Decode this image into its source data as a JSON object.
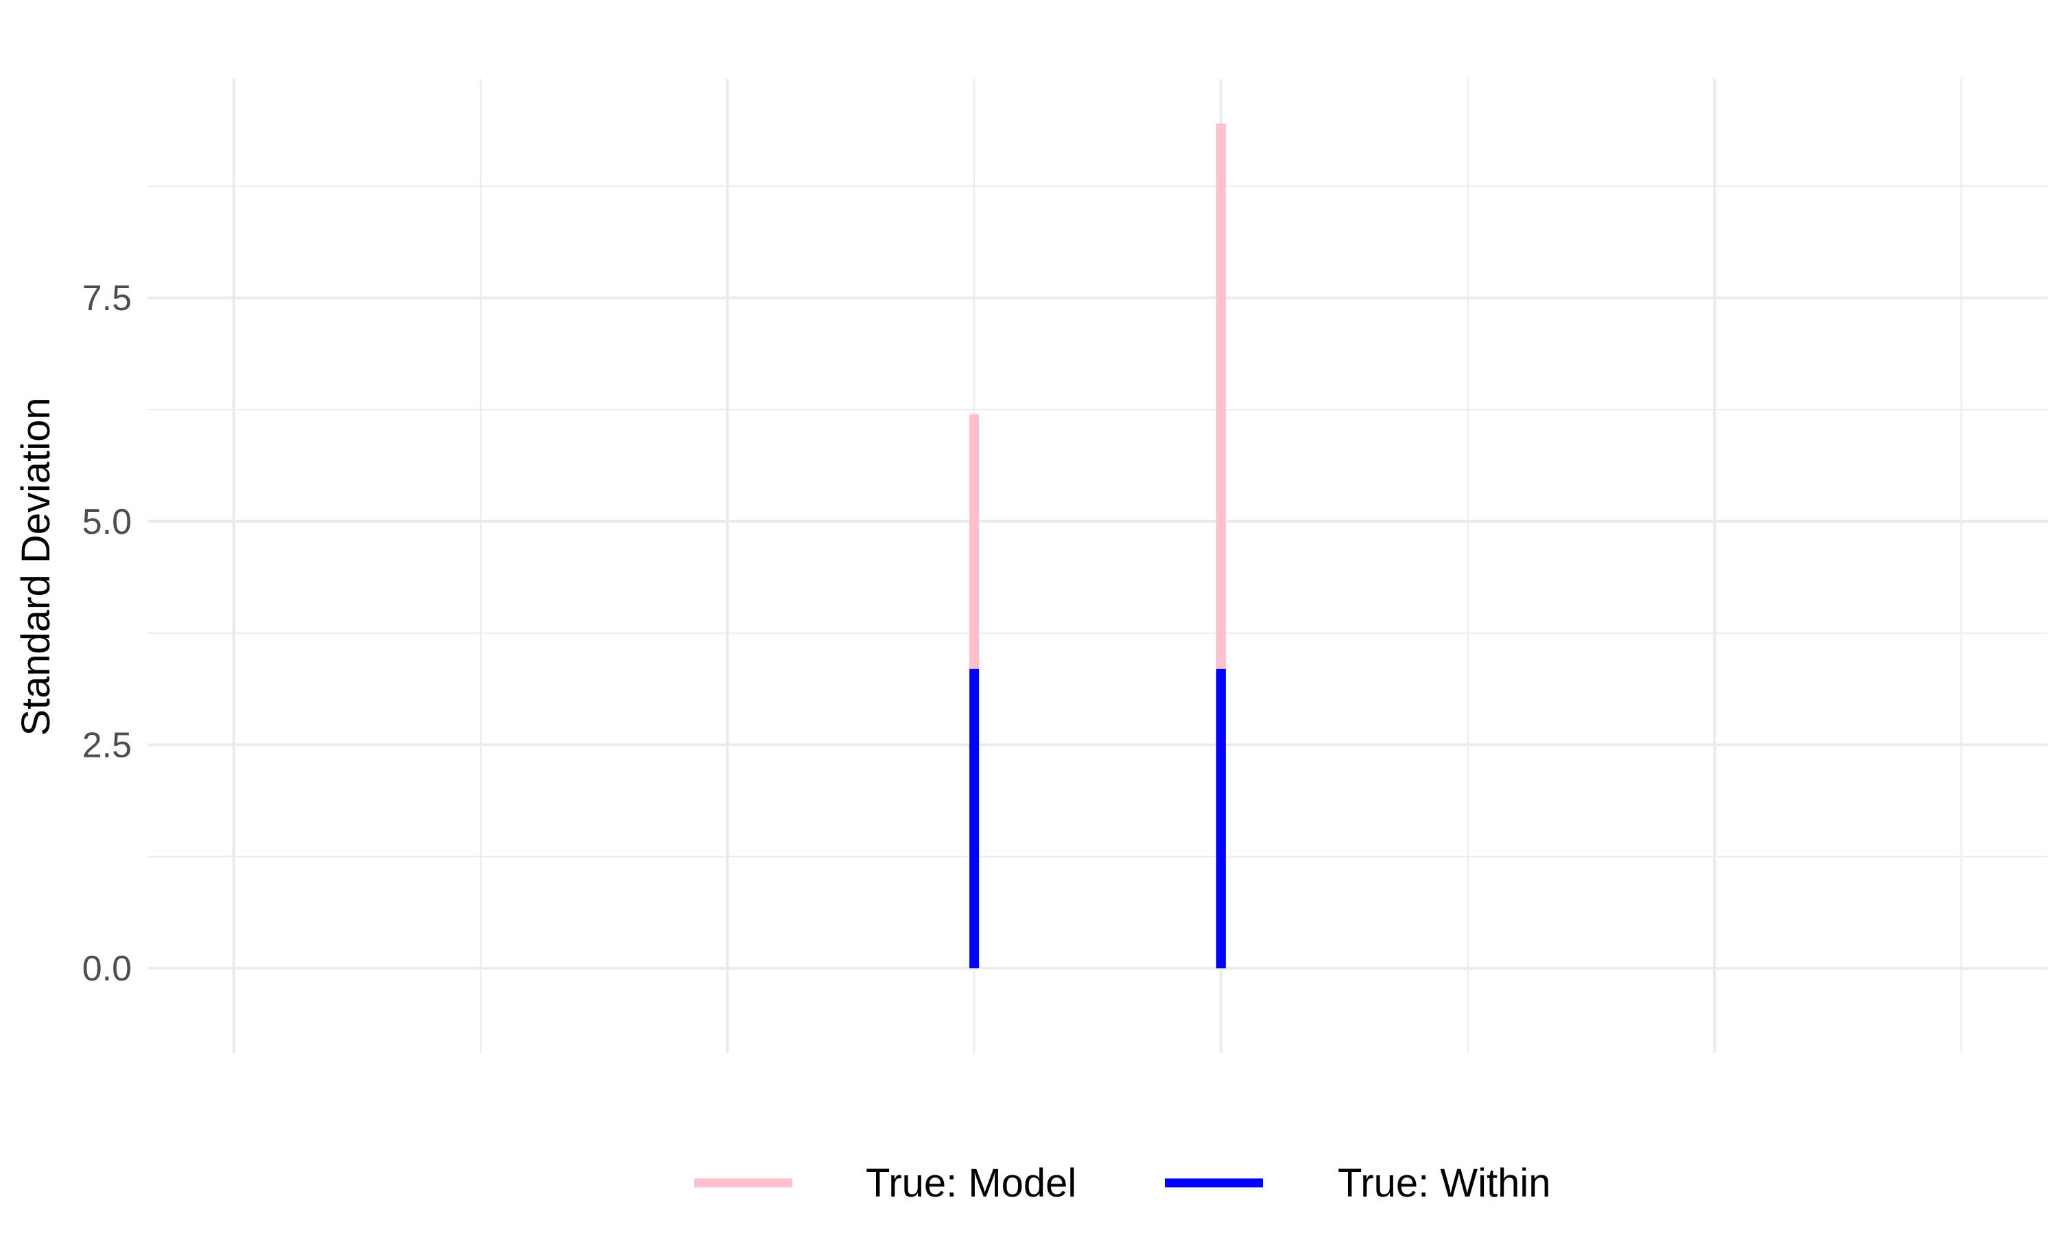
{
  "chart_data": {
    "type": "bar",
    "title": "",
    "xlabel": "",
    "ylabel": "Standard Deviation",
    "xlim": [
      -2.35,
      5.35
    ],
    "ylim": [
      -0.95,
      9.95
    ],
    "x_major_ticks": [
      -2,
      0,
      2,
      4
    ],
    "x_minor_ticks": [
      -1,
      1,
      3,
      5
    ],
    "y_major_ticks": [
      0.0,
      2.5,
      5.0,
      7.5
    ],
    "y_minor_ticks": [
      1.25,
      3.75,
      6.25,
      8.75
    ],
    "y_tick_labels": [
      "0.0",
      "2.5",
      "5.0",
      "7.5"
    ],
    "grid": true,
    "legend_position": "bottom",
    "series": [
      {
        "name": "True: Model",
        "color": "#FFC0CB",
        "x": [
          1,
          2
        ],
        "y0": [
          3.35,
          3.35
        ],
        "y1": [
          6.2,
          9.45
        ]
      },
      {
        "name": "True: Within",
        "color": "#0000FF",
        "x": [
          1,
          2
        ],
        "y0": [
          0,
          0
        ],
        "y1": [
          3.35,
          3.35
        ]
      }
    ]
  }
}
